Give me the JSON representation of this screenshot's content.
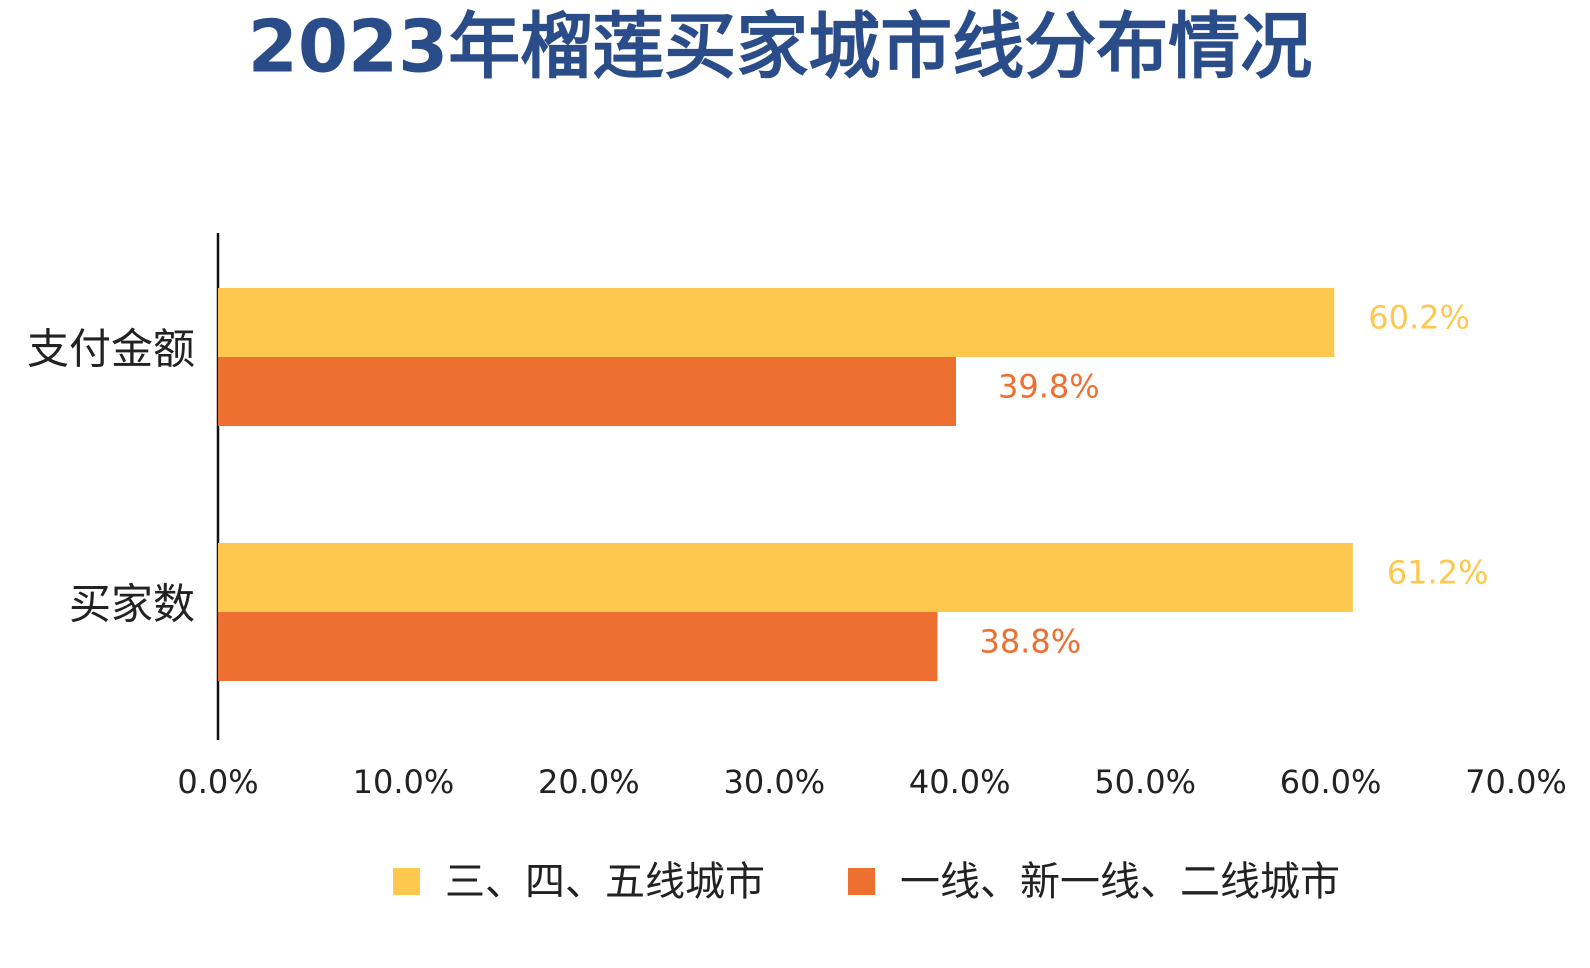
{
  "chart_data": {
    "type": "bar",
    "orientation": "horizontal",
    "title": "2023年榴莲买家城市线分布情况",
    "categories": [
      "支付金额",
      "买家数"
    ],
    "series": [
      {
        "name": "三、四、五线城市",
        "color": "#fec84e",
        "values": [
          60.2,
          61.2
        ],
        "value_labels": [
          "60.2%",
          "61.2%"
        ]
      },
      {
        "name": "一线、新一线、二线城市",
        "color": "#ed7031",
        "values": [
          39.8,
          38.8
        ],
        "value_labels": [
          "39.8%",
          "38.8%"
        ]
      }
    ],
    "xlim": [
      0,
      70
    ],
    "xticks": [
      {
        "value": 0,
        "label": "0.0%"
      },
      {
        "value": 10,
        "label": "10.0%"
      },
      {
        "value": 20,
        "label": "20.0%"
      },
      {
        "value": 30,
        "label": "30.0%"
      },
      {
        "value": 40,
        "label": "40.0%"
      },
      {
        "value": 50,
        "label": "50.0%"
      },
      {
        "value": 60,
        "label": "60.0%"
      },
      {
        "value": 70,
        "label": "70.0%"
      }
    ],
    "legend": "bottom"
  }
}
